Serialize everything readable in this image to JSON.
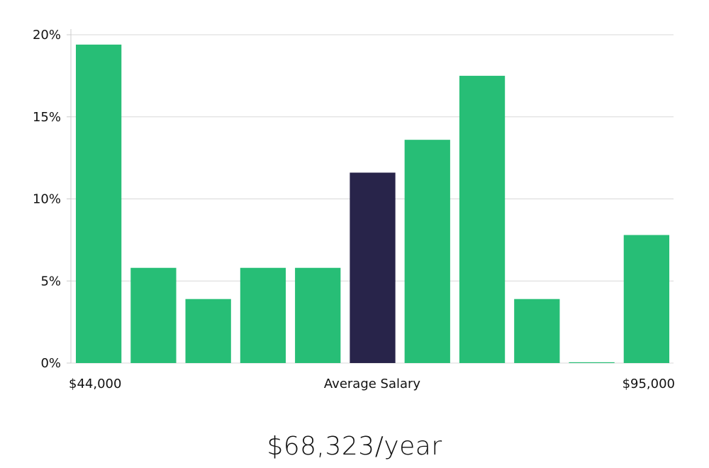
{
  "chart_data": {
    "type": "bar",
    "values": [
      19.4,
      5.8,
      3.9,
      5.8,
      5.8,
      11.6,
      13.6,
      17.5,
      3.9,
      0.05,
      7.8
    ],
    "highlight_index": 5,
    "ylim": [
      0,
      20
    ],
    "y_ticks": [
      0,
      5,
      10,
      15,
      20
    ],
    "y_tick_labels": [
      "0%",
      "5%",
      "10%",
      "15%",
      "20%"
    ],
    "x_labels": {
      "min": "$44,000",
      "middle": "Average Salary",
      "max": "$95,000"
    },
    "grid": true,
    "colors": {
      "bar": "#27be76",
      "highlight": "#28244a",
      "grid": "#d8d8d8",
      "axis": "#cccccc"
    }
  },
  "headline": "$68,323/year"
}
